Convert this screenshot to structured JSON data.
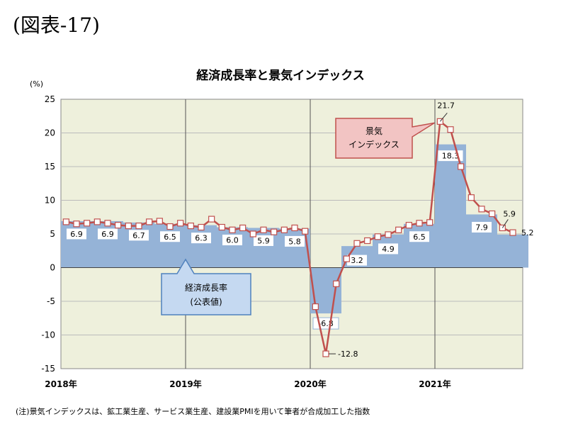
{
  "figure_label": "(図表-17)",
  "footnote": "(注)景気インデックスは、鉱工業生産、サービス業生産、建設業PMIを用いて筆者が合成加工した指数",
  "chart_data": {
    "type": "bar+line",
    "title": "経済成長率と景気インデックス",
    "ylabel": "(%)",
    "ylim": [
      -15,
      25
    ],
    "yticks": [
      25,
      20,
      15,
      10,
      5,
      0,
      -5,
      -10,
      -15
    ],
    "grid": true,
    "x_year_labels": [
      "2018年",
      "2019年",
      "2020年",
      "2021年"
    ],
    "bar_series": {
      "name": "経済成長率(公表値)",
      "name_lines": [
        "経済成長率",
        "(公表値)"
      ],
      "color": "#95b3d7",
      "quarters": [
        "2018Q1",
        "2018Q2",
        "2018Q3",
        "2018Q4",
        "2019Q1",
        "2019Q2",
        "2019Q3",
        "2019Q4",
        "2020Q1",
        "2020Q2",
        "2020Q3",
        "2020Q4",
        "2021Q1",
        "2021Q2",
        "2021Q3"
      ],
      "values": [
        6.9,
        6.9,
        6.7,
        6.5,
        6.3,
        6.0,
        5.9,
        5.8,
        -6.8,
        3.2,
        4.9,
        6.5,
        18.3,
        7.9,
        4.9
      ],
      "labels": [
        "6.9",
        "6.9",
        "6.7",
        "6.5",
        "6.3",
        "6.0",
        "5.9",
        "5.8",
        "-6.8",
        "3.2",
        "4.9",
        "6.5",
        "18.3",
        "7.9",
        ""
      ]
    },
    "line_series": {
      "name": "景気インデックス",
      "name_lines": [
        "景気",
        "インデックス"
      ],
      "color": "#c0504d",
      "values": [
        6.8,
        6.5,
        6.6,
        6.8,
        6.6,
        6.3,
        6.2,
        6.2,
        6.8,
        6.9,
        6.1,
        6.6,
        6.2,
        6.0,
        7.2,
        6.0,
        5.6,
        5.9,
        5.0,
        5.6,
        5.3,
        5.6,
        5.9,
        5.4,
        -5.8,
        -12.8,
        -2.4,
        1.3,
        3.6,
        4.0,
        4.6,
        4.9,
        5.6,
        6.3,
        6.6,
        6.7,
        21.7,
        20.5,
        15.0,
        10.4,
        8.7,
        8.0,
        5.9,
        5.2
      ],
      "annotations": {
        "max": "21.7",
        "min": "-12.8",
        "second_last": "5.9",
        "last": "5.2"
      }
    }
  }
}
